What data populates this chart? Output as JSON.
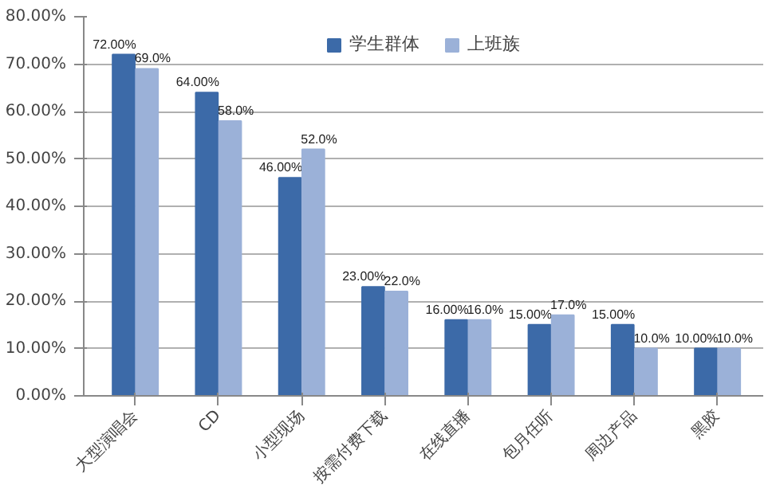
{
  "chart_data": {
    "type": "bar",
    "categories": [
      "大型演唱会",
      "CD",
      "小型现场",
      "按需付费下载",
      "在线直播",
      "包月任听",
      "周边产品",
      "黑胶"
    ],
    "series": [
      {
        "name": "学生群体",
        "color": "#3c6aa8",
        "values": [
          72,
          64,
          46,
          23,
          16,
          15,
          15,
          10
        ],
        "value_labels": [
          "72.00%",
          "64.00%",
          "46.00%",
          "23.00%",
          "16.00%",
          "15.00%",
          "15.00%",
          "10.00%"
        ]
      },
      {
        "name": "上班族",
        "color": "#9bb1d8",
        "values": [
          69,
          58,
          52,
          22,
          16,
          17,
          10,
          10
        ],
        "value_labels": [
          "69.0%",
          "58.0%",
          "52.0%",
          "22.0%",
          "16.0%",
          "17.0%",
          "10.0%",
          "10.0%"
        ]
      }
    ],
    "ylim": [
      0,
      80
    ],
    "yticks": [
      {
        "value": 0,
        "label": "0.00%"
      },
      {
        "value": 10,
        "label": "10.00%"
      },
      {
        "value": 20,
        "label": "20.00%"
      },
      {
        "value": 30,
        "label": "30.00%"
      },
      {
        "value": 40,
        "label": "40.00%"
      },
      {
        "value": 50,
        "label": "50.00%"
      },
      {
        "value": 60,
        "label": "60.00%"
      },
      {
        "value": 70,
        "label": "70.00%"
      },
      {
        "value": 80,
        "label": "80.00%"
      }
    ],
    "grid": "y",
    "legend": "top"
  }
}
